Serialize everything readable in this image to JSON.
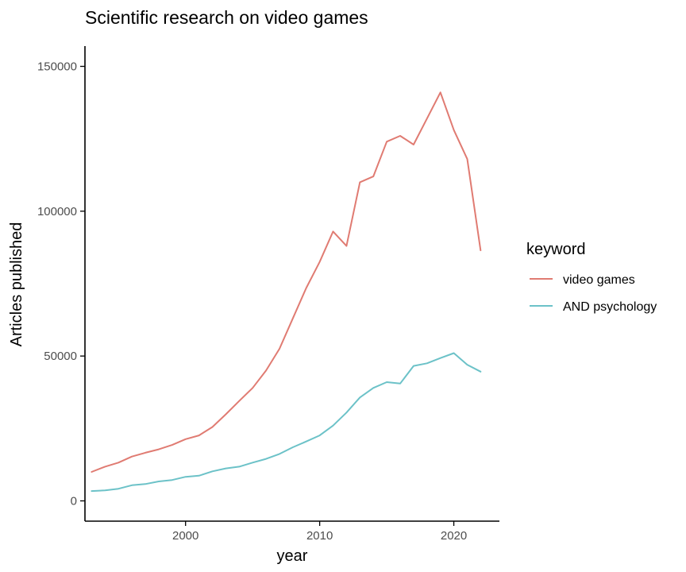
{
  "chart_data": {
    "type": "line",
    "title": "Scientific research on video games",
    "xlabel": "year",
    "ylabel": "Articles published",
    "xlim": [
      1992.5,
      2023.4
    ],
    "ylim": [
      -7000,
      157000
    ],
    "xticks": [
      2000,
      2010,
      2020
    ],
    "yticks": [
      0,
      50000,
      100000,
      150000
    ],
    "grid": false,
    "legend": {
      "title": "keyword",
      "placement": "right"
    },
    "x": [
      1993,
      1994,
      1995,
      1996,
      1997,
      1998,
      1999,
      2000,
      2001,
      2002,
      2003,
      2004,
      2005,
      2006,
      2007,
      2008,
      2009,
      2010,
      2011,
      2012,
      2013,
      2014,
      2015,
      2016,
      2017,
      2018,
      2019,
      2020,
      2021,
      2022
    ],
    "series": [
      {
        "name": "video games",
        "color": "#E07B72",
        "values": [
          10000,
          11800,
          13200,
          15300,
          16600,
          17800,
          19300,
          21300,
          22600,
          25500,
          29900,
          34500,
          39000,
          45000,
          52500,
          63000,
          73500,
          82500,
          93000,
          88000,
          110000,
          112000,
          124000,
          126000,
          123000,
          132000,
          141000,
          128000,
          118000,
          86500
        ]
      },
      {
        "name": "AND psychology",
        "color": "#6CC2C8",
        "values": [
          3400,
          3600,
          4200,
          5400,
          5800,
          6700,
          7200,
          8300,
          8700,
          10200,
          11200,
          11800,
          13200,
          14500,
          16200,
          18500,
          20500,
          22600,
          26000,
          30500,
          35700,
          39000,
          41000,
          40500,
          46600,
          47500,
          49300,
          51000,
          47000,
          44600
        ]
      }
    ]
  }
}
